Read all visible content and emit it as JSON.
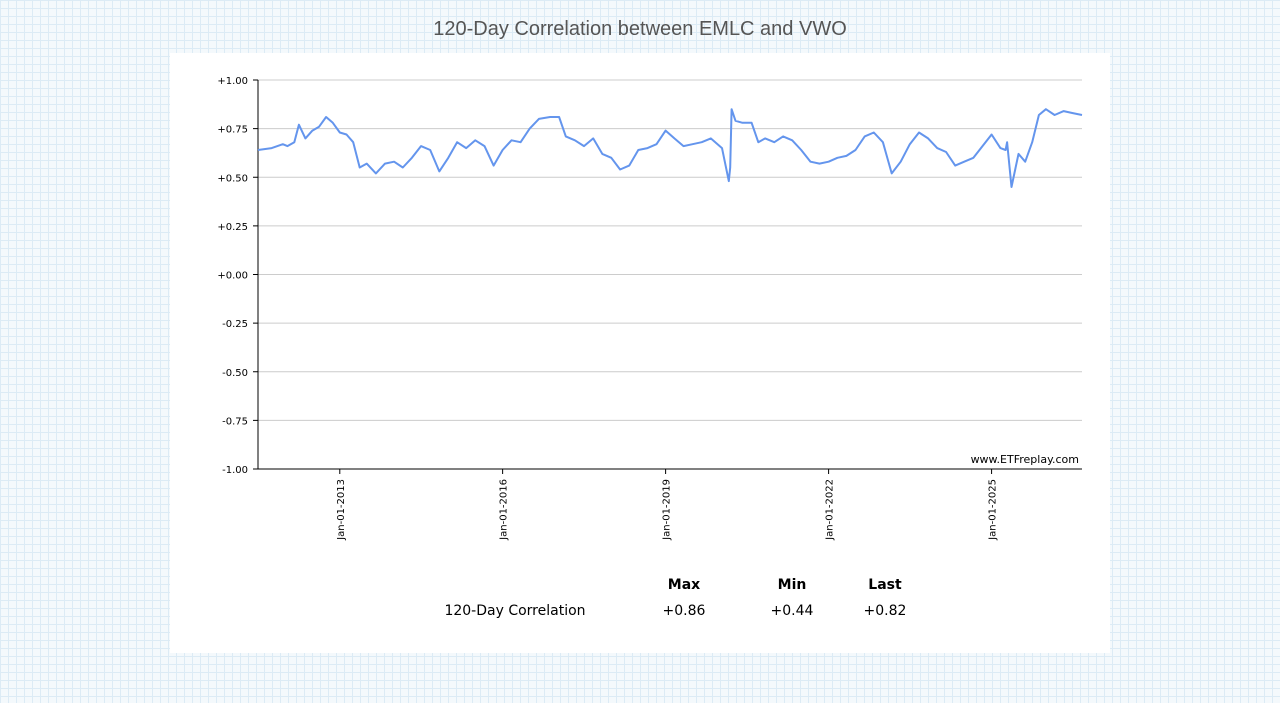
{
  "page": {
    "title": "120-Day Correlation between EMLC and VWO"
  },
  "chart_data": {
    "type": "line",
    "title": "120-Day Correlation between EMLC and VWO",
    "xlabel": "",
    "ylabel": "",
    "ylim": [
      -1.0,
      1.0
    ],
    "xlim": [
      "2011-07-01",
      "2026-09-01"
    ],
    "y_ticks": [
      "+1.00",
      "+0.75",
      "+0.50",
      "+0.25",
      "+0.00",
      "-0.25",
      "-0.50",
      "-0.75",
      "-1.00"
    ],
    "x_ticks": [
      {
        "date": "2013-01-01",
        "label": "Jan-01-2013"
      },
      {
        "date": "2016-01-01",
        "label": "Jan-01-2016"
      },
      {
        "date": "2019-01-01",
        "label": "Jan-01-2019"
      },
      {
        "date": "2022-01-01",
        "label": "Jan-01-2022"
      },
      {
        "date": "2025-01-01",
        "label": "Jan-01-2025"
      }
    ],
    "grid": true,
    "line_color": "#6495ed",
    "series": [
      {
        "x": [
          "2011-07-01",
          "2011-10-01",
          "2011-12-15",
          "2012-01-15",
          "2012-03-01",
          "2012-04-01",
          "2012-05-15",
          "2012-07-01",
          "2012-08-15",
          "2012-10-01",
          "2012-11-15",
          "2013-01-01",
          "2013-02-15",
          "2013-04-01",
          "2013-05-15",
          "2013-07-01",
          "2013-09-01",
          "2013-11-01",
          "2014-01-01",
          "2014-03-01",
          "2014-05-01",
          "2014-07-01",
          "2014-09-01",
          "2014-11-01",
          "2015-01-01",
          "2015-03-01",
          "2015-05-01",
          "2015-07-01",
          "2015-09-01",
          "2015-11-01",
          "2016-01-01",
          "2016-03-01",
          "2016-05-01",
          "2016-07-01",
          "2016-09-01",
          "2016-11-15",
          "2017-01-15",
          "2017-03-01",
          "2017-05-01",
          "2017-07-01",
          "2017-09-01",
          "2017-11-01",
          "2018-01-01",
          "2018-03-01",
          "2018-05-01",
          "2018-07-01",
          "2018-09-01",
          "2018-11-01",
          "2019-01-01",
          "2019-03-01",
          "2019-05-01",
          "2019-07-01",
          "2019-09-01",
          "2019-11-01",
          "2020-01-15",
          "2020-03-01",
          "2020-03-10",
          "2020-03-20",
          "2020-04-15",
          "2020-06-01",
          "2020-08-01",
          "2020-09-15",
          "2020-11-01",
          "2021-01-01",
          "2021-03-01",
          "2021-05-01",
          "2021-07-01",
          "2021-09-01",
          "2021-11-01",
          "2022-01-01",
          "2022-03-01",
          "2022-05-01",
          "2022-07-01",
          "2022-09-01",
          "2022-11-01",
          "2023-01-01",
          "2023-03-01",
          "2023-05-01",
          "2023-07-01",
          "2023-09-01",
          "2023-11-01",
          "2024-01-01",
          "2024-03-01",
          "2024-05-01",
          "2024-07-01",
          "2024-09-01",
          "2024-11-01",
          "2025-01-01",
          "2025-03-01",
          "2025-04-05",
          "2025-04-15",
          "2025-05-15",
          "2025-07-01",
          "2025-08-15",
          "2025-10-01",
          "2025-11-15",
          "2026-01-01",
          "2026-03-01",
          "2026-05-01",
          "2026-07-01",
          "2026-09-01"
        ],
        "y": [
          0.64,
          0.65,
          0.67,
          0.66,
          0.68,
          0.77,
          0.7,
          0.74,
          0.76,
          0.81,
          0.78,
          0.73,
          0.72,
          0.68,
          0.55,
          0.57,
          0.52,
          0.57,
          0.58,
          0.55,
          0.6,
          0.66,
          0.64,
          0.53,
          0.6,
          0.68,
          0.65,
          0.69,
          0.66,
          0.56,
          0.64,
          0.69,
          0.68,
          0.75,
          0.8,
          0.81,
          0.81,
          0.71,
          0.69,
          0.66,
          0.7,
          0.62,
          0.6,
          0.54,
          0.56,
          0.64,
          0.65,
          0.67,
          0.74,
          0.7,
          0.66,
          0.67,
          0.68,
          0.7,
          0.65,
          0.48,
          0.55,
          0.85,
          0.79,
          0.78,
          0.78,
          0.68,
          0.7,
          0.68,
          0.71,
          0.69,
          0.64,
          0.58,
          0.57,
          0.58,
          0.6,
          0.61,
          0.64,
          0.71,
          0.73,
          0.68,
          0.52,
          0.58,
          0.67,
          0.73,
          0.7,
          0.65,
          0.63,
          0.56,
          0.58,
          0.6,
          0.66,
          0.72,
          0.65,
          0.64,
          0.68,
          0.45,
          0.62,
          0.58,
          0.68,
          0.82,
          0.85,
          0.82,
          0.84,
          0.83,
          0.82
        ]
      }
    ],
    "watermark": "www.ETFreplay.com"
  },
  "stats": {
    "headers": [
      "",
      "Max",
      "Min",
      "Last"
    ],
    "row": {
      "label": "120-Day Correlation",
      "max": "+0.86",
      "min": "+0.44",
      "last": "+0.82"
    }
  }
}
